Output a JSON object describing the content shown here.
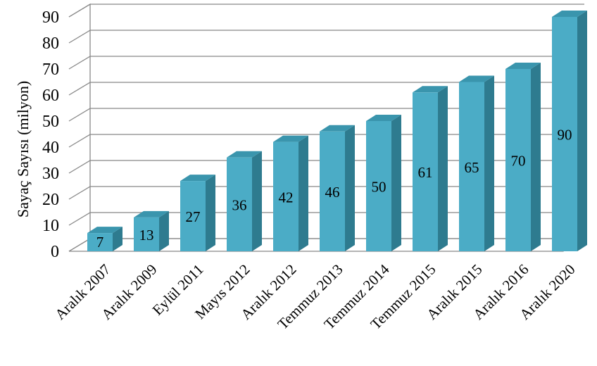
{
  "chart_data": {
    "type": "bar",
    "style": "3d-column",
    "ylabel": "Sayaç Sayısı (milyon)",
    "xlabel": "",
    "ylim": [
      0,
      90
    ],
    "yticks": [
      0,
      10,
      20,
      30,
      40,
      50,
      60,
      70,
      80,
      90
    ],
    "grid": true,
    "categories": [
      "Aralık 2007",
      "Aralık 2009",
      "Eylül 2011",
      "Mayıs 2012",
      "Aralık 2012",
      "Temmuz 2013",
      "Temmuz 2014",
      "Temmuz 2015",
      "Aralık 2015",
      "Aralık 2016",
      "Aralık 2020"
    ],
    "values": [
      7,
      13,
      27,
      36,
      42,
      46,
      50,
      61,
      65,
      70,
      90
    ],
    "bar_color": "#4BACC6",
    "bar_side_color": "#2E7B8F",
    "bar_top_color": "#3A95AD"
  }
}
